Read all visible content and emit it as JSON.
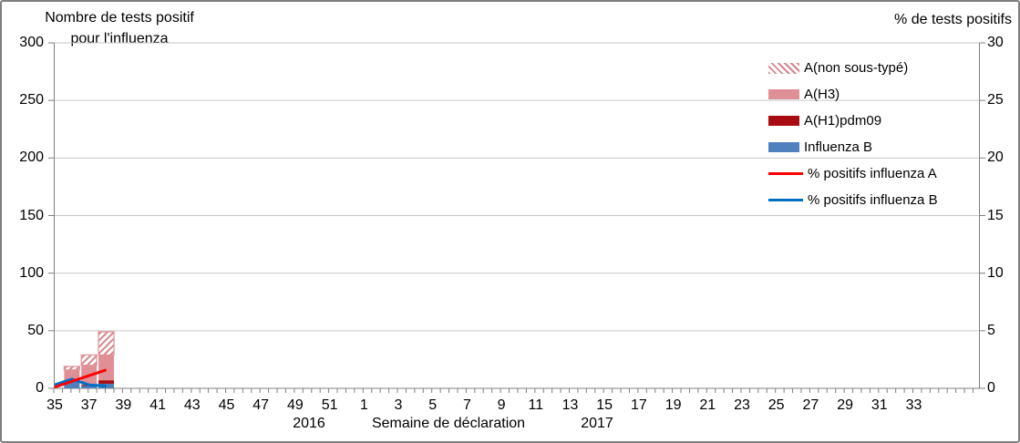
{
  "chart_data": {
    "type": "bar+line combo",
    "bar_value_axis": "left",
    "line_value_axis": "right",
    "left_axis": {
      "title_line1": "Nombre de tests positif",
      "title_line2": "pour l'influenza",
      "min": 0,
      "max": 300,
      "step": 50,
      "ticks": [
        300,
        250,
        200,
        150,
        100,
        50,
        0
      ]
    },
    "right_axis": {
      "title": "% de tests positifs",
      "min": 0,
      "max": 30,
      "step": 5,
      "ticks": [
        30,
        25,
        20,
        15,
        10,
        5,
        0
      ]
    },
    "x_axis": {
      "title": "Semaine de déclaration",
      "year_start": "2016",
      "year_end": "2017",
      "tick_labels": [
        "35",
        "37",
        "39",
        "41",
        "43",
        "45",
        "47",
        "49",
        "51",
        "1",
        "3",
        "5",
        "7",
        "9",
        "11",
        "13",
        "15",
        "17",
        "19",
        "21",
        "23",
        "25",
        "27",
        "29",
        "31",
        "33"
      ],
      "label_interval_weeks": 2,
      "grid": "horizontal-only"
    },
    "bars": {
      "weeks": [
        36,
        37,
        38
      ],
      "stack_order_bottom_to_top": [
        "Influenza B",
        "A(H1)pdm09",
        "A(H3)",
        "A(non sous-typé)"
      ],
      "series": [
        {
          "name": "A(non sous-typé)",
          "fill": "hatched",
          "color": "#df9097",
          "values": [
            3,
            9,
            20
          ]
        },
        {
          "name": "A(H3)",
          "fill": "solid",
          "color": "#df9097",
          "values": [
            10,
            17,
            22
          ]
        },
        {
          "name": "A(H1)pdm09",
          "fill": "solid",
          "color": "#a80c12",
          "values": [
            0,
            1,
            3
          ]
        },
        {
          "name": "Influenza B",
          "fill": "solid",
          "color": "#4f81bd",
          "values": [
            6,
            2,
            4
          ]
        }
      ]
    },
    "lines": [
      {
        "name": "% positifs influenza A",
        "color": "#ff0000",
        "weeks": [
          35,
          36,
          37,
          38
        ],
        "values": [
          0.1,
          0.6,
          1.1,
          1.6
        ]
      },
      {
        "name": "% positifs influenza B",
        "color": "#0070c0",
        "weeks": [
          35,
          36,
          37,
          38
        ],
        "values": [
          0.3,
          0.8,
          0.3,
          0.2
        ]
      }
    ],
    "legend_position": "top-right-inside"
  },
  "legend": {
    "items": [
      {
        "label": "A(non sous-typé)",
        "swatch": "hatched",
        "color": "#df9097"
      },
      {
        "label": "A(H3)",
        "swatch": "solid",
        "color": "#df9097"
      },
      {
        "label": "A(H1)pdm09",
        "swatch": "solid",
        "color": "#a80c12"
      },
      {
        "label": "Influenza B",
        "swatch": "solid",
        "color": "#4f81bd"
      },
      {
        "label": "% positifs influenza A",
        "swatch": "line",
        "color": "#ff0000"
      },
      {
        "label": "% positifs influenza B",
        "swatch": "line",
        "color": "#0070c0"
      }
    ]
  },
  "style_colors": {
    "gridline": "#c6c6c6",
    "axis_line": "#7f7f7f",
    "hatch_stripe": "#d4858c",
    "text": "#000000"
  }
}
